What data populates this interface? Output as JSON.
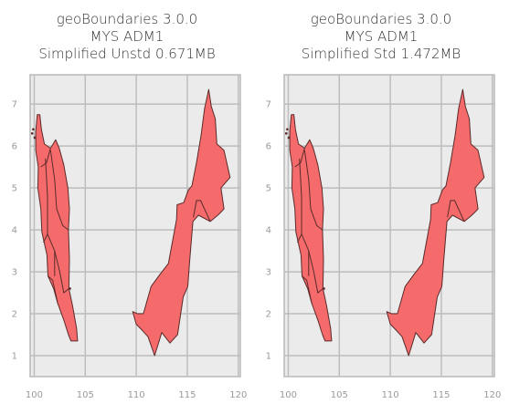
{
  "chart_data": [
    {
      "type": "map",
      "title_lines": [
        "geoBoundaries 3.0.0",
        "MYS ADM1",
        "Simplified Unstd 0.671MB"
      ],
      "x_ticks": [
        100,
        105,
        110,
        115,
        120
      ],
      "y_ticks": [
        1,
        2,
        3,
        4,
        5,
        6,
        7
      ],
      "xlim": [
        99.6,
        120.2
      ],
      "ylim": [
        0.5,
        7.7
      ],
      "grid": true,
      "fill_color": "#f56b6b",
      "edge_color": "#5a2a2a"
    },
    {
      "type": "map",
      "title_lines": [
        "geoBoundaries 3.0.0",
        "MYS ADM1",
        "Simplified Std 1.472MB"
      ],
      "x_ticks": [
        100,
        105,
        110,
        115,
        120
      ],
      "y_ticks": [
        1,
        2,
        3,
        4,
        5,
        6,
        7
      ],
      "xlim": [
        99.6,
        120.2
      ],
      "ylim": [
        0.5,
        7.7
      ],
      "grid": true,
      "fill_color": "#f56b6b",
      "edge_color": "#5a2a2a"
    }
  ]
}
